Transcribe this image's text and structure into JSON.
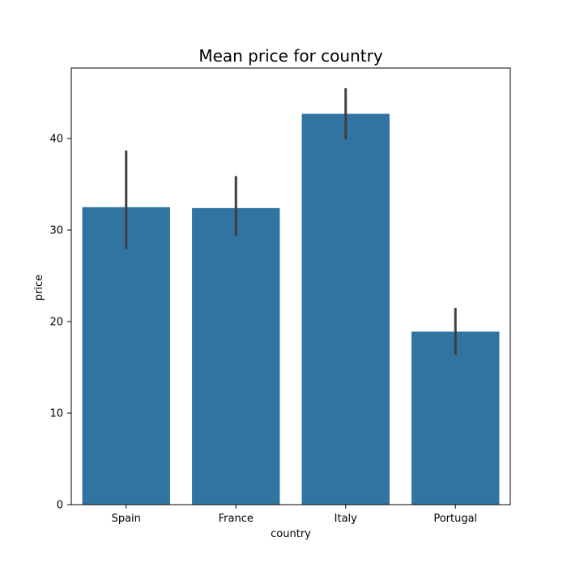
{
  "chart_data": {
    "type": "bar",
    "title": "Mean price for country",
    "xlabel": "country",
    "ylabel": "price",
    "categories": [
      "Spain",
      "France",
      "Italy",
      "Portugal"
    ],
    "values": [
      32.5,
      32.4,
      42.7,
      18.9
    ],
    "error_bars": [
      {
        "low": 27.9,
        "high": 38.7
      },
      {
        "low": 29.4,
        "high": 35.9
      },
      {
        "low": 39.9,
        "high": 45.5
      },
      {
        "low": 16.4,
        "high": 21.5
      }
    ],
    "yticks": [
      0,
      10,
      20,
      30,
      40
    ],
    "ylim": [
      0,
      47.7
    ],
    "grid": false,
    "bar_color": "#3274a1",
    "error_color": "#3f3f3f"
  }
}
